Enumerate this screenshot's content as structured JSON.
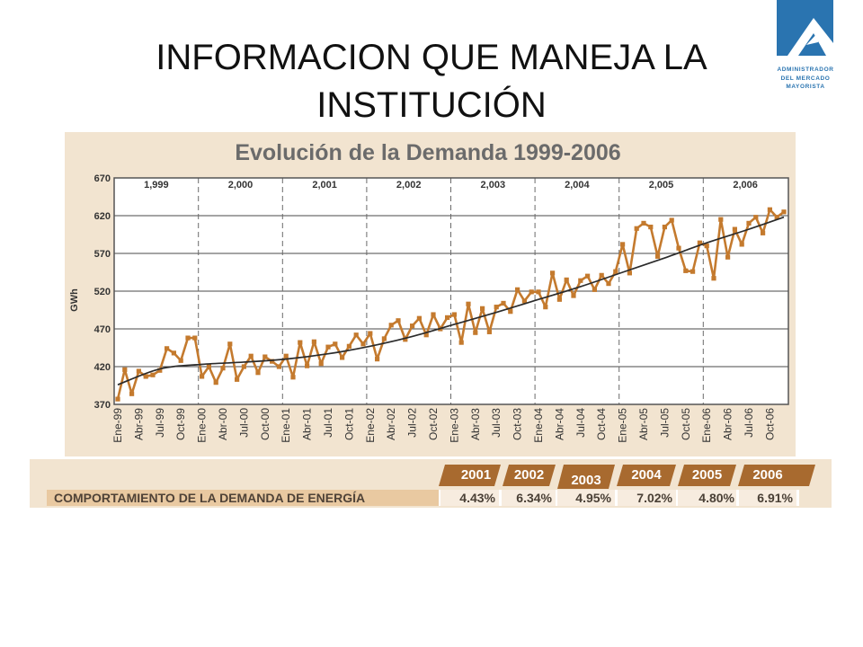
{
  "slide": {
    "title_line1": "INFORMACION QUE MANEJA LA",
    "title_line2": "INSTITUCIÓN"
  },
  "logo": {
    "lines": [
      "ADMINISTRADOR",
      "DEL MERCADO",
      "MAYORISTA"
    ]
  },
  "colors": {
    "logo_blue": "#2a74b0",
    "panel_bg": "#f2e4d0",
    "chart_title": "#6b6b6b",
    "series": "#c47a2e",
    "trend": "#2b2b2b",
    "axis_text": "#333333",
    "grid": "#4a4a4a",
    "header_tab": "#a86a2f",
    "row_label_bg": "#e9c9a1",
    "cell_bg": "#f7ecdf"
  },
  "chart_data": {
    "type": "line",
    "title": "Evolución de la Demanda 1999-2006",
    "ylabel": "GWh",
    "ylim": [
      370,
      670
    ],
    "yticks": [
      670,
      620,
      570,
      520,
      470,
      420,
      370
    ],
    "grid": "horizontal",
    "legend": "none",
    "year_labels": [
      "1,999",
      "2,000",
      "2,001",
      "2,002",
      "2,003",
      "2,004",
      "2,005",
      "2,006"
    ],
    "x_tick_labels": [
      "Ene-99",
      "Abr-99",
      "Jul-99",
      "Oct-99",
      "Ene-00",
      "Abr-00",
      "Jul-00",
      "Oct-00",
      "Ene-01",
      "Abr-01",
      "Jul-01",
      "Oct-01",
      "Ene-02",
      "Abr-02",
      "Jul-02",
      "Oct-02",
      "Ene-03",
      "Abr-03",
      "Jul-03",
      "Oct-03",
      "Ene-04",
      "Abr-04",
      "Jul-04",
      "Oct-04",
      "Ene-05",
      "Abr-05",
      "Jul-05",
      "Oct-05",
      "Ene-06",
      "Abr-06",
      "Jul-06",
      "Oct-06"
    ],
    "x": [
      "1999-01",
      "1999-02",
      "1999-03",
      "1999-04",
      "1999-05",
      "1999-06",
      "1999-07",
      "1999-08",
      "1999-09",
      "1999-10",
      "1999-11",
      "1999-12",
      "2000-01",
      "2000-02",
      "2000-03",
      "2000-04",
      "2000-05",
      "2000-06",
      "2000-07",
      "2000-08",
      "2000-09",
      "2000-10",
      "2000-11",
      "2000-12",
      "2001-01",
      "2001-02",
      "2001-03",
      "2001-04",
      "2001-05",
      "2001-06",
      "2001-07",
      "2001-08",
      "2001-09",
      "2001-10",
      "2001-11",
      "2001-12",
      "2002-01",
      "2002-02",
      "2002-03",
      "2002-04",
      "2002-05",
      "2002-06",
      "2002-07",
      "2002-08",
      "2002-09",
      "2002-10",
      "2002-11",
      "2002-12",
      "2003-01",
      "2003-02",
      "2003-03",
      "2003-04",
      "2003-05",
      "2003-06",
      "2003-07",
      "2003-08",
      "2003-09",
      "2003-10",
      "2003-11",
      "2003-12",
      "2004-01",
      "2004-02",
      "2004-03",
      "2004-04",
      "2004-05",
      "2004-06",
      "2004-07",
      "2004-08",
      "2004-09",
      "2004-10",
      "2004-11",
      "2004-12",
      "2005-01",
      "2005-02",
      "2005-03",
      "2005-04",
      "2005-05",
      "2005-06",
      "2005-07",
      "2005-08",
      "2005-09",
      "2005-10",
      "2005-11",
      "2005-12",
      "2006-01",
      "2006-02",
      "2006-03",
      "2006-04",
      "2006-05",
      "2006-06",
      "2006-07",
      "2006-08",
      "2006-09",
      "2006-10",
      "2006-11",
      "2006-12"
    ],
    "series": [
      {
        "values": [
          377,
          416,
          384,
          414,
          407,
          409,
          415,
          444,
          438,
          428,
          458,
          458,
          407,
          420,
          399,
          418,
          450,
          403,
          420,
          434,
          412,
          433,
          427,
          420,
          434,
          406,
          452,
          421,
          453,
          424,
          446,
          450,
          432,
          447,
          462,
          450,
          464,
          430,
          457,
          475,
          481,
          456,
          474,
          484,
          462,
          489,
          470,
          485,
          489,
          452,
          503,
          465,
          497,
          466,
          499,
          504,
          493,
          522,
          507,
          519,
          519,
          499,
          544,
          509,
          535,
          514,
          534,
          540,
          522,
          541,
          530,
          546,
          582,
          544,
          603,
          610,
          605,
          566,
          605,
          614,
          577,
          547,
          546,
          584,
          580,
          537,
          615,
          565,
          602,
          582,
          610,
          618,
          597,
          628,
          618,
          625
        ]
      },
      {
        "x": [
          "1999-01",
          "1999-07",
          "2000-01",
          "2000-07",
          "2001-01",
          "2001-07",
          "2002-01",
          "2002-07",
          "2003-01",
          "2003-07",
          "2004-01",
          "2004-07",
          "2005-01",
          "2005-07",
          "2006-01",
          "2006-07",
          "2006-12"
        ],
        "values": [
          396,
          417,
          423,
          426,
          430,
          437,
          447,
          460,
          476,
          492,
          509,
          526,
          545,
          564,
          584,
          602,
          618
        ]
      }
    ]
  },
  "table": {
    "row_label": "COMPORTAMIENTO DE LA DEMANDA DE ENERGÍA",
    "years": [
      "2001",
      "2002",
      "2003",
      "2004",
      "2005",
      "2006"
    ],
    "values": [
      "4.43%",
      "6.34%",
      "4.95%",
      "7.02%",
      "4.80%",
      "6.91%"
    ]
  }
}
